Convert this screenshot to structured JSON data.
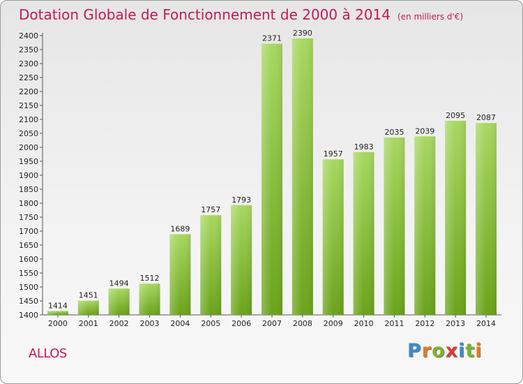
{
  "header": {
    "title": "Dotation Globale de Fonctionnement de 2000 à 2014",
    "unit": "(en milliers d'€)"
  },
  "footer": {
    "place": "ALLOS",
    "logo": "Proxiti"
  },
  "colors": {
    "title": "#c2195a",
    "bar_light": "#a8d861",
    "bar_dark": "#6aa31a",
    "logo": [
      "#3b8ad1",
      "#e87a1d",
      "#7bb52b",
      "#e03a3a",
      "#3b8ad1",
      "#7bb52b",
      "#e87a1d"
    ]
  },
  "chart_data": {
    "type": "bar",
    "title": "Dotation Globale de Fonctionnement de 2000 à 2014",
    "subtitle": "(en milliers d'€)",
    "xlabel": "",
    "ylabel": "",
    "categories": [
      "2000",
      "2001",
      "2002",
      "2003",
      "2004",
      "2005",
      "2006",
      "2007",
      "2008",
      "2009",
      "2010",
      "2011",
      "2012",
      "2013",
      "2014"
    ],
    "values": [
      1414,
      1451,
      1494,
      1512,
      1689,
      1757,
      1793,
      2371,
      2390,
      1957,
      1983,
      2035,
      2039,
      2095,
      2087
    ],
    "ylim": [
      1400,
      2400
    ],
    "ytick_step": 50,
    "grid": false,
    "data_labels": true
  }
}
